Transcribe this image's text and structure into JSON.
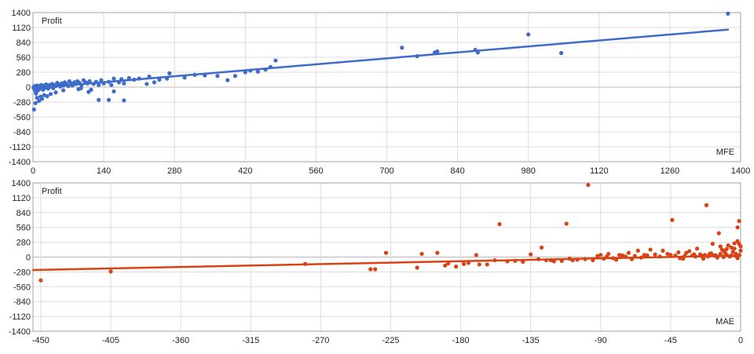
{
  "chart_data": [
    {
      "type": "scatter",
      "title": "",
      "ylabel": "Profit",
      "xlabel": "MFE",
      "xlim": [
        0,
        1400
      ],
      "ylim": [
        -1400,
        1400
      ],
      "x_ticks": [
        "0",
        "140",
        "280",
        "420",
        "560",
        "700",
        "840",
        "980",
        "1120",
        "1260",
        "1400"
      ],
      "y_ticks": [
        "1400",
        "1120",
        "840",
        "560",
        "280",
        "0",
        "-280",
        "-560",
        "-840",
        "-1120",
        "-1400"
      ],
      "grid": true,
      "color": "#3f6bc9",
      "trendline": {
        "x": [
          0,
          1375
        ],
        "y": [
          -20,
          1080
        ]
      },
      "points": [
        [
          1375,
          1380
        ],
        [
          980,
          990
        ],
        [
          1045,
          640
        ],
        [
          875,
          700
        ],
        [
          880,
          650
        ],
        [
          800,
          670
        ],
        [
          795,
          650
        ],
        [
          760,
          580
        ],
        [
          730,
          740
        ],
        [
          480,
          500
        ],
        [
          470,
          380
        ],
        [
          460,
          330
        ],
        [
          445,
          290
        ],
        [
          430,
          310
        ],
        [
          420,
          280
        ],
        [
          400,
          210
        ],
        [
          385,
          130
        ],
        [
          365,
          210
        ],
        [
          340,
          220
        ],
        [
          320,
          230
        ],
        [
          300,
          180
        ],
        [
          270,
          260
        ],
        [
          265,
          160
        ],
        [
          250,
          140
        ],
        [
          240,
          90
        ],
        [
          230,
          200
        ],
        [
          225,
          60
        ],
        [
          210,
          160
        ],
        [
          200,
          140
        ],
        [
          190,
          170
        ],
        [
          180,
          70
        ],
        [
          175,
          150
        ],
        [
          170,
          90
        ],
        [
          160,
          160
        ],
        [
          155,
          40
        ],
        [
          150,
          100
        ],
        [
          140,
          70
        ],
        [
          135,
          130
        ],
        [
          130,
          40
        ],
        [
          125,
          100
        ],
        [
          120,
          60
        ],
        [
          115,
          -50
        ],
        [
          112,
          110
        ],
        [
          108,
          70
        ],
        [
          104,
          90
        ],
        [
          100,
          130
        ],
        [
          96,
          40
        ],
        [
          92,
          80
        ],
        [
          88,
          110
        ],
        [
          85,
          60
        ],
        [
          82,
          90
        ],
        [
          78,
          30
        ],
        [
          75,
          70
        ],
        [
          72,
          110
        ],
        [
          70,
          20
        ],
        [
          66,
          60
        ],
        [
          63,
          90
        ],
        [
          60,
          30
        ],
        [
          57,
          70
        ],
        [
          54,
          10
        ],
        [
          51,
          50
        ],
        [
          48,
          80
        ],
        [
          45,
          20
        ],
        [
          42,
          40
        ],
        [
          40,
          -20
        ],
        [
          38,
          60
        ],
        [
          35,
          10
        ],
        [
          33,
          40
        ],
        [
          30,
          -30
        ],
        [
          28,
          20
        ],
        [
          26,
          50
        ],
        [
          24,
          -10
        ],
        [
          22,
          30
        ],
        [
          20,
          -50
        ],
        [
          18,
          10
        ],
        [
          16,
          40
        ],
        [
          14,
          -30
        ],
        [
          12,
          20
        ],
        [
          10,
          -60
        ],
        [
          9,
          10
        ],
        [
          8,
          30
        ],
        [
          7,
          -20
        ],
        [
          6,
          0
        ],
        [
          5,
          -80
        ],
        [
          4,
          20
        ],
        [
          3,
          -40
        ],
        [
          2,
          10
        ],
        [
          1,
          -10
        ],
        [
          6,
          -120
        ],
        [
          8,
          -200
        ],
        [
          10,
          -60
        ],
        [
          15,
          -180
        ],
        [
          18,
          -220
        ],
        [
          22,
          -150
        ],
        [
          28,
          -170
        ],
        [
          35,
          -130
        ],
        [
          45,
          -100
        ],
        [
          5,
          -300
        ],
        [
          2,
          -420
        ],
        [
          12,
          -260
        ],
        [
          130,
          -240
        ],
        [
          150,
          -240
        ],
        [
          160,
          -80
        ],
        [
          180,
          -250
        ],
        [
          110,
          -90
        ],
        [
          90,
          -40
        ],
        [
          95,
          -20
        ],
        [
          60,
          -60
        ]
      ]
    },
    {
      "type": "scatter",
      "title": "",
      "ylabel": "Profit",
      "xlabel": "MAE",
      "xlim": [
        -455,
        0
      ],
      "ylim": [
        -1400,
        1400
      ],
      "x_ticks": [
        "-450",
        "-405",
        "-360",
        "-315",
        "-270",
        "-225",
        "-180",
        "-135",
        "-90",
        "-45",
        "0"
      ],
      "y_ticks": [
        "1400",
        "1120",
        "840",
        "560",
        "280",
        "0",
        "-280",
        "-560",
        "-840",
        "-1120",
        "-1400"
      ],
      "grid": true,
      "color": "#d84315",
      "trendline": {
        "x": [
          -455,
          0
        ],
        "y": [
          -245,
          30
        ]
      },
      "points": [
        [
          -450,
          -440
        ],
        [
          -405,
          -270
        ],
        [
          -280,
          -130
        ],
        [
          -238,
          -230
        ],
        [
          -235,
          -230
        ],
        [
          -228,
          80
        ],
        [
          -208,
          -200
        ],
        [
          -205,
          60
        ],
        [
          -195,
          80
        ],
        [
          -190,
          -160
        ],
        [
          -188,
          -120
        ],
        [
          -183,
          -180
        ],
        [
          -178,
          -130
        ],
        [
          -175,
          -110
        ],
        [
          -170,
          40
        ],
        [
          -168,
          -140
        ],
        [
          -163,
          -140
        ],
        [
          -158,
          -60
        ],
        [
          -155,
          620
        ],
        [
          -150,
          -80
        ],
        [
          -145,
          -70
        ],
        [
          -140,
          -90
        ],
        [
          -135,
          50
        ],
        [
          -130,
          -40
        ],
        [
          -128,
          180
        ],
        [
          -125,
          -60
        ],
        [
          -122,
          -60
        ],
        [
          -120,
          -80
        ],
        [
          -115,
          -70
        ],
        [
          -112,
          630
        ],
        [
          -110,
          -30
        ],
        [
          -108,
          -60
        ],
        [
          -105,
          -50
        ],
        [
          -100,
          -40
        ],
        [
          -98,
          1360
        ],
        [
          -95,
          -60
        ],
        [
          -92,
          20
        ],
        [
          -90,
          40
        ],
        [
          -88,
          -30
        ],
        [
          -85,
          60
        ],
        [
          -80,
          -50
        ],
        [
          -76,
          30
        ],
        [
          -72,
          80
        ],
        [
          -70,
          -40
        ],
        [
          -66,
          120
        ],
        [
          -62,
          40
        ],
        [
          -58,
          140
        ],
        [
          -55,
          50
        ],
        [
          -50,
          120
        ],
        [
          -47,
          60
        ],
        [
          -44,
          700
        ],
        [
          -42,
          30
        ],
        [
          -40,
          90
        ],
        [
          -37,
          -30
        ],
        [
          -35,
          80
        ],
        [
          -33,
          110
        ],
        [
          -30,
          50
        ],
        [
          -28,
          160
        ],
        [
          -25,
          20
        ],
        [
          -22,
          980
        ],
        [
          -20,
          60
        ],
        [
          -18,
          250
        ],
        [
          -16,
          30
        ],
        [
          -14,
          450
        ],
        [
          -12,
          140
        ],
        [
          -10,
          80
        ],
        [
          -8,
          220
        ],
        [
          -6,
          30
        ],
        [
          -4,
          160
        ],
        [
          -3,
          60
        ],
        [
          -2,
          560
        ],
        [
          -1,
          680
        ],
        [
          0,
          120
        ],
        [
          -1,
          40
        ],
        [
          -2,
          -20
        ],
        [
          -3,
          20
        ],
        [
          -5,
          100
        ],
        [
          -7,
          10
        ],
        [
          -9,
          40
        ],
        [
          -11,
          0
        ],
        [
          -13,
          60
        ],
        [
          -15,
          -10
        ],
        [
          -17,
          30
        ],
        [
          -19,
          70
        ],
        [
          -21,
          10
        ],
        [
          -23,
          40
        ],
        [
          -24,
          -30
        ],
        [
          -26,
          50
        ],
        [
          -29,
          10
        ],
        [
          -31,
          30
        ],
        [
          -36,
          20
        ],
        [
          -39,
          -20
        ],
        [
          -45,
          40
        ],
        [
          -52,
          10
        ],
        [
          -60,
          30
        ],
        [
          -64,
          -10
        ],
        [
          -68,
          20
        ],
        [
          -74,
          10
        ],
        [
          -78,
          40
        ],
        [
          -82,
          -20
        ],
        [
          -86,
          10
        ],
        [
          -2,
          300
        ],
        [
          -1,
          250
        ],
        [
          0,
          200
        ],
        [
          -4,
          260
        ],
        [
          -6,
          180
        ],
        [
          -9,
          150
        ],
        [
          -13,
          200
        ],
        [
          -11,
          120
        ]
      ]
    }
  ]
}
